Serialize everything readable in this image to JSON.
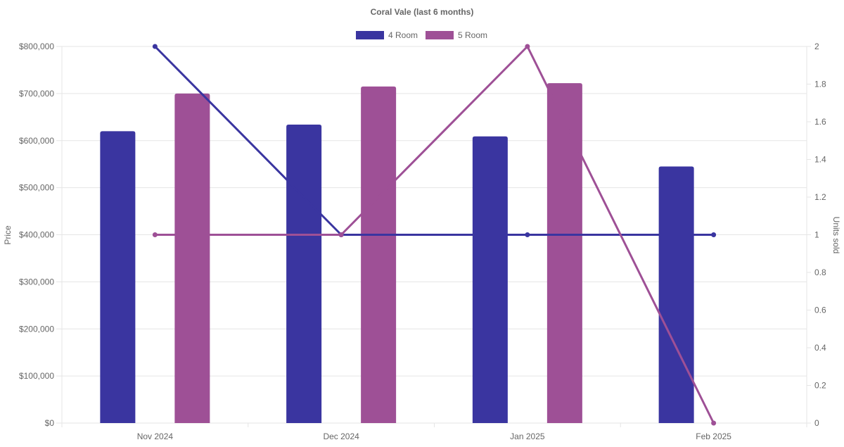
{
  "chart_data": {
    "type": "bar",
    "title": "Coral Vale (last 6 months)",
    "categories": [
      "Nov 2024",
      "Dec 2024",
      "Jan 2025",
      "Feb 2025"
    ],
    "y_left": {
      "label": "Price",
      "min": 0,
      "max": 800000,
      "ticks": [
        "$0",
        "$100,000",
        "$200,000",
        "$300,000",
        "$400,000",
        "$500,000",
        "$600,000",
        "$700,000",
        "$800,000"
      ]
    },
    "y_right": {
      "label": "Units sold",
      "min": 0,
      "max": 2,
      "ticks": [
        "0",
        "0.2",
        "0.4",
        "0.6",
        "0.8",
        "1",
        "1.2",
        "1.4",
        "1.6",
        "1.8",
        "2"
      ]
    },
    "legend_position": "top-center",
    "grid": true,
    "series": [
      {
        "name": "4 Room",
        "color": "#3a35a0",
        "price": [
          620000,
          634000,
          609000,
          545000
        ],
        "units": [
          2,
          1,
          1,
          1
        ]
      },
      {
        "name": "5 Room",
        "color": "#9e5096",
        "price": [
          700000,
          715000,
          722000,
          null
        ],
        "units": [
          1,
          1,
          2,
          0
        ]
      }
    ]
  }
}
